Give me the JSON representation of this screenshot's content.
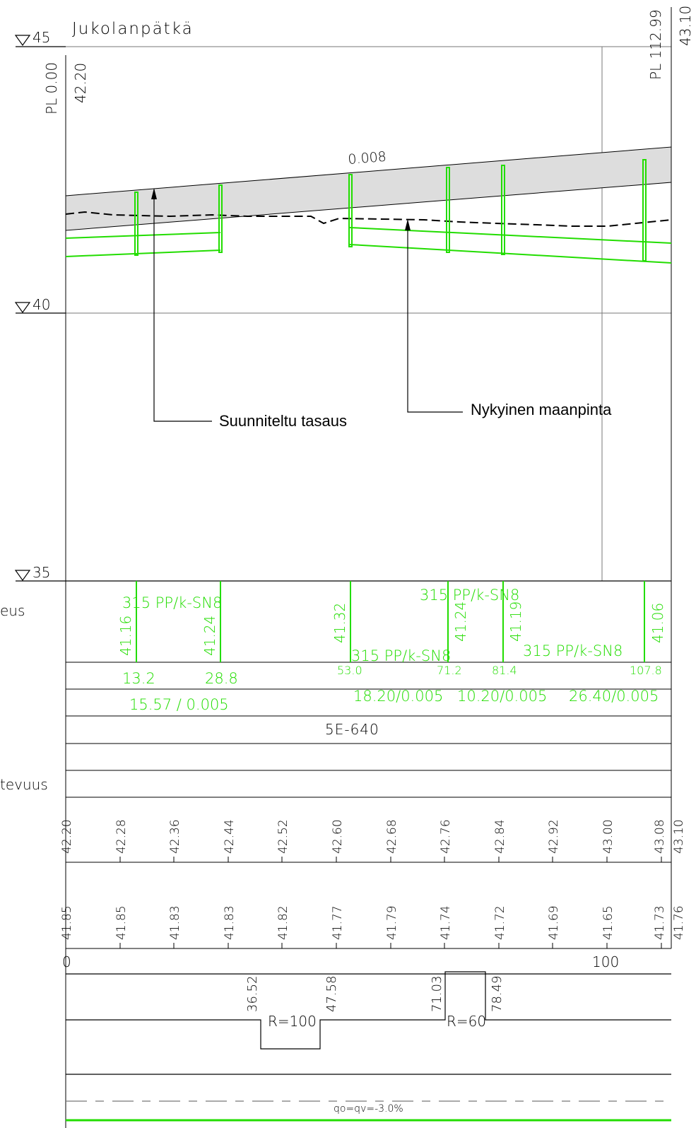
{
  "title": "Jukolanpätkä",
  "colors": {
    "line": "#000000",
    "pipe": "#22dd00",
    "band": "#dddddd",
    "grid": "#777777"
  },
  "elevation_labels": [
    "45",
    "40",
    "35"
  ],
  "station_start": {
    "label": "PL 0.00",
    "level": "42.20"
  },
  "station_end": {
    "label": "PL 112.99",
    "level": "43.10"
  },
  "slope_label": "0.008",
  "annotations": {
    "design_grade": "Suunniteltu tasaus",
    "existing_ground": "Nykyinen maanpinta"
  },
  "row_labels": {
    "row1": "eus",
    "row6": "tevuus"
  },
  "pipe_labels": [
    "315 PP/k-SN8",
    "315 PP/k-SN8",
    "315 PP/k-SN8",
    "315 PP/k-SN8"
  ],
  "well_levels": [
    "41.16",
    "41.24",
    "41.32",
    "41.24",
    "41.19",
    "41.06"
  ],
  "well_stations": [
    "13.2",
    "28.8",
    "53.0",
    "71.2",
    "81.4",
    "107.8"
  ],
  "segment_slopes": [
    "15.57 / 0.005",
    "18.20/0.005",
    "10.20/0.005",
    "26.40/0.005"
  ],
  "pipe_type": "5E-640",
  "design_levels": [
    "42.20",
    "42.28",
    "42.36",
    "42.44",
    "42.52",
    "42.60",
    "42.68",
    "42.76",
    "42.84",
    "42.92",
    "43.00",
    "43.08",
    "43.10"
  ],
  "ground_levels": [
    "41.85",
    "41.85",
    "41.83",
    "41.83",
    "41.82",
    "41.77",
    "41.79",
    "41.74",
    "41.72",
    "41.69",
    "41.65",
    "41.73",
    "41.76"
  ],
  "station_axis": [
    "0",
    "100"
  ],
  "curves": [
    {
      "start": "36.52",
      "end": "47.58",
      "radius": "R=100"
    },
    {
      "start": "71.03",
      "end": "78.49",
      "radius": "R=60"
    }
  ],
  "crossfall": "qo=qv=-3.0%"
}
